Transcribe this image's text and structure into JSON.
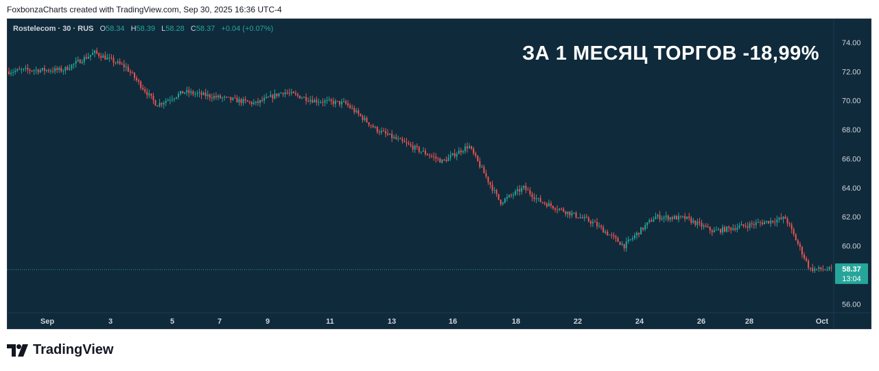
{
  "header": {
    "caption": "FoxbonzaCharts created with TradingView.com, Sep 30, 2025 16:36 UTC-4"
  },
  "legend": {
    "symbol": "Rostelecom · 30 · RUS",
    "o_label": "O",
    "o_value": "58.34",
    "h_label": "H",
    "h_value": "58.39",
    "l_label": "L",
    "l_value": "58.28",
    "c_label": "C",
    "c_value": "58.37",
    "change": "+0.04 (+0.07%)"
  },
  "headline": "ЗА 1 МЕСЯЦ ТОРГОВ -18,99%",
  "price_badge": {
    "price": "58.37",
    "countdown": "13:04"
  },
  "footer": {
    "brand": "TradingView"
  },
  "colors": {
    "background": "#0f2a3b",
    "up": "#26a69a",
    "down": "#ef5350",
    "axis_text": "#d1d4dc",
    "badge": "#26a69a"
  },
  "chart_data": {
    "type": "line",
    "title": "",
    "xlabel": "",
    "ylabel": "",
    "ylim": [
      55.4,
      75.6
    ],
    "y_ticks": [
      "74.00",
      "72.00",
      "70.00",
      "68.00",
      "66.00",
      "64.00",
      "62.00",
      "60.00",
      "56.00"
    ],
    "x_ticks": [
      "Sep",
      "3",
      "5",
      "7",
      "9",
      "11",
      "13",
      "16",
      "18",
      "22",
      "24",
      "26",
      "28",
      "Oct"
    ],
    "last_price": 58.37,
    "series": [
      {
        "x": [
          "Aug 29",
          "Sep 1",
          "Sep 2",
          "Sep 3",
          "Sep 4",
          "Sep 5",
          "Sep 8",
          "Sep 9",
          "Sep 10",
          "Sep 11",
          "Sep 12",
          "Sep 15",
          "Sep 16",
          "Sep 17",
          "Sep 18",
          "Sep 19",
          "Sep 22",
          "Sep 23",
          "Sep 24",
          "Sep 25",
          "Sep 26",
          "Sep 29",
          "Sep 30"
        ],
        "values": [
          72.1,
          72.1,
          73.3,
          72.3,
          69.7,
          70.6,
          69.8,
          70.6,
          70.0,
          69.8,
          68.0,
          65.8,
          66.9,
          63.0,
          64.0,
          63.1,
          61.6,
          60.0,
          62.0,
          61.9,
          61.0,
          61.9,
          58.4
        ]
      }
    ]
  }
}
